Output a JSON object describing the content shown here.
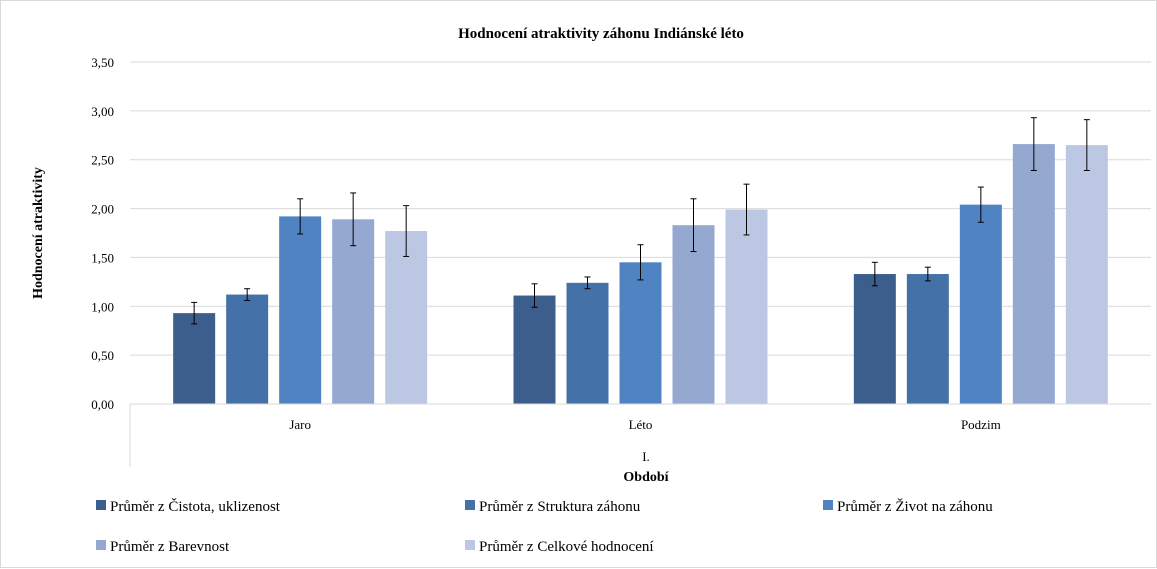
{
  "chart_data": {
    "type": "bar",
    "title": "Hodnocení atraktivity záhonu Indiánské léto",
    "ylabel": "Hodnocení atraktivity",
    "xlabel": "Období",
    "x_group_label": "I.",
    "ylim": [
      0,
      3.5
    ],
    "yticks": [
      "0,00",
      "0,50",
      "1,00",
      "1,50",
      "2,00",
      "2,50",
      "3,00",
      "3,50"
    ],
    "ytick_values": [
      0,
      0.5,
      1.0,
      1.5,
      2.0,
      2.5,
      3.0,
      3.5
    ],
    "grid": true,
    "legend_position": "bottom",
    "categories": [
      "Jaro",
      "Léto",
      "Podzim"
    ],
    "series": [
      {
        "name": "Průměr z Čistota, uklizenost",
        "color": "#3b5e8c",
        "values": [
          0.93,
          1.11,
          1.33
        ],
        "errors": [
          0.11,
          0.12,
          0.12
        ]
      },
      {
        "name": "Průměr z Struktura záhonu",
        "color": "#4472a8",
        "values": [
          1.12,
          1.24,
          1.33
        ],
        "errors": [
          0.06,
          0.06,
          0.07
        ]
      },
      {
        "name": "Průměr z Život na záhonu",
        "color": "#4f83c2",
        "values": [
          1.92,
          1.45,
          2.04
        ],
        "errors": [
          0.18,
          0.18,
          0.18
        ]
      },
      {
        "name": "Průměr z Barevnost",
        "color": "#95a8d0",
        "values": [
          1.89,
          1.83,
          2.66
        ],
        "errors": [
          0.27,
          0.27,
          0.27
        ]
      },
      {
        "name": "Průměr z Celkové hodnocení",
        "color": "#bcc8e3",
        "values": [
          1.77,
          1.99,
          2.65
        ],
        "errors": [
          0.26,
          0.26,
          0.26
        ]
      }
    ]
  }
}
